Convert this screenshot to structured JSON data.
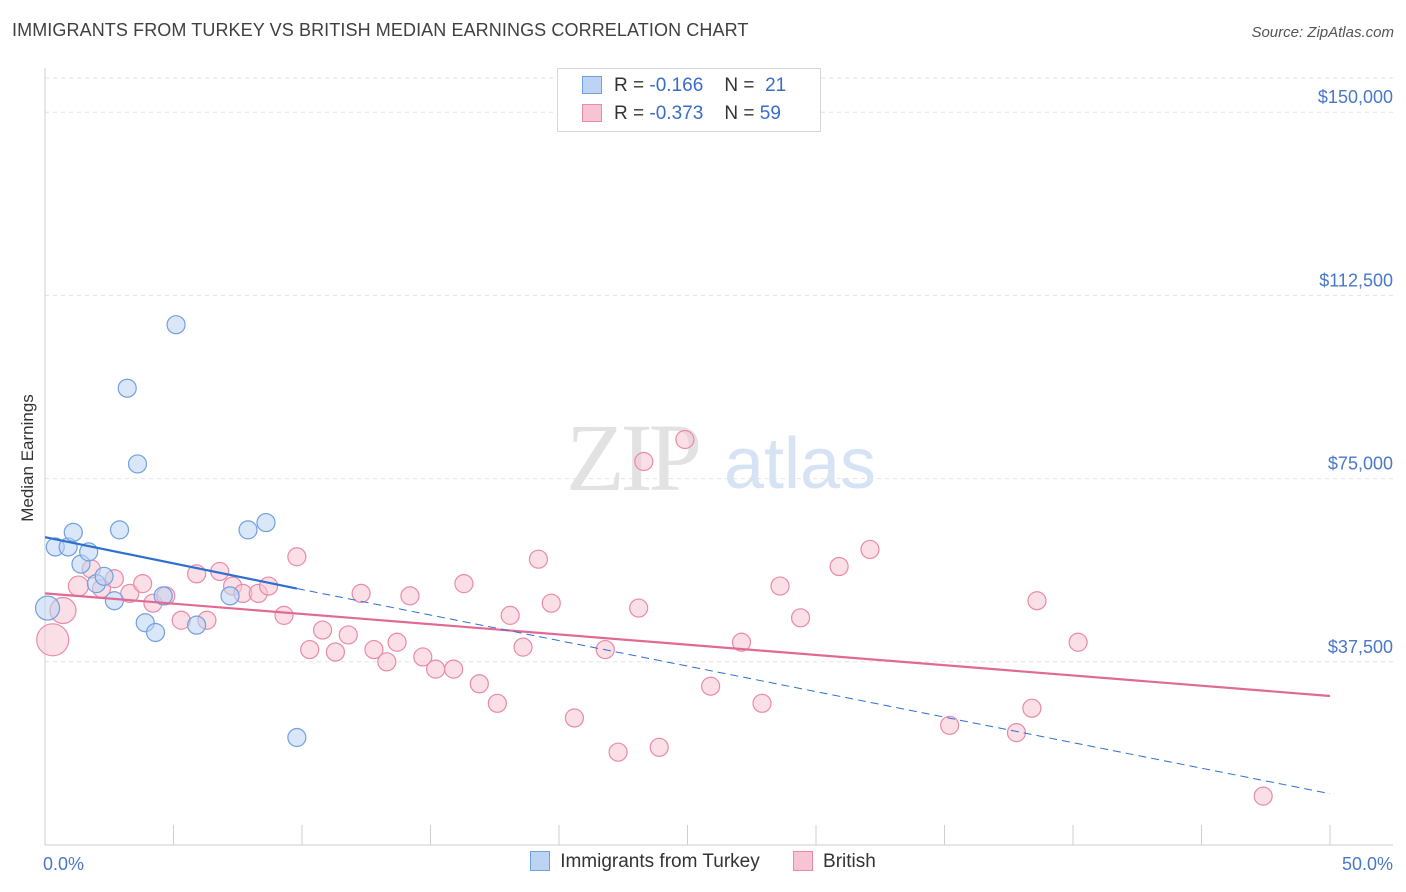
{
  "title": "IMMIGRANTS FROM TURKEY VS BRITISH MEDIAN EARNINGS CORRELATION CHART",
  "source": "Source: ZipAtlas.com",
  "watermark": {
    "zip": "ZIP",
    "atlas": "atlas"
  },
  "colors": {
    "turkey": "#6fa0e0",
    "turkey_fill": "#bcd3f3",
    "british": "#e88aa8",
    "british_fill": "#f7c4d4",
    "turkey_line": "#2f6fd0",
    "british_line": "#e06a94",
    "axis_label": "#4a78c7"
  },
  "legend": {
    "rows": [
      {
        "r_label": "R =",
        "r_value": "-0.166",
        "n_label": "N =",
        "n_value": "21"
      },
      {
        "r_label": "R =",
        "r_value": "-0.373",
        "n_label": "N =",
        "n_value": "59"
      }
    ]
  },
  "bottom_legend": {
    "turkey": "Immigrants from Turkey",
    "british": "British"
  },
  "chart_data": {
    "type": "scatter",
    "title": "IMMIGRANTS FROM TURKEY VS BRITISH MEDIAN EARNINGS CORRELATION CHART",
    "xlabel": "",
    "ylabel": "Median Earnings",
    "xlim": [
      0,
      50
    ],
    "ylim": [
      0,
      157000
    ],
    "x_tick_labels": [
      "0.0%",
      "50.0%"
    ],
    "y_ticks": [
      37500,
      75000,
      112500,
      150000
    ],
    "y_tick_labels": [
      "$37,500",
      "$75,000",
      "$112,500",
      "$150,000"
    ],
    "grid": true,
    "legend_position": "top-center",
    "series": [
      {
        "name": "Immigrants from Turkey",
        "r": -0.166,
        "n": 21,
        "points": [
          [
            0.1,
            48500,
            12
          ],
          [
            0.4,
            61000,
            9
          ],
          [
            0.9,
            61000,
            9
          ],
          [
            1.1,
            64000,
            9
          ],
          [
            1.4,
            57500,
            9
          ],
          [
            1.7,
            60000,
            9
          ],
          [
            2.0,
            53500,
            9
          ],
          [
            2.3,
            55000,
            9
          ],
          [
            2.7,
            50000,
            9
          ],
          [
            2.9,
            64500,
            9
          ],
          [
            3.2,
            93500,
            9
          ],
          [
            3.6,
            78000,
            9
          ],
          [
            3.9,
            45500,
            9
          ],
          [
            4.3,
            43500,
            9
          ],
          [
            4.6,
            51000,
            9
          ],
          [
            5.1,
            106500,
            9
          ],
          [
            5.9,
            45000,
            9
          ],
          [
            7.2,
            51000,
            9
          ],
          [
            7.9,
            64500,
            9
          ],
          [
            8.6,
            66000,
            9
          ],
          [
            9.8,
            22000,
            9
          ]
        ],
        "trend": {
          "x0": 0,
          "y0": 63000,
          "x1": 9.8,
          "y1": 52500,
          "dash_x1": 50,
          "dash_y1": 10500
        }
      },
      {
        "name": "British",
        "r": -0.373,
        "n": 59,
        "points": [
          [
            0.3,
            42000,
            16
          ],
          [
            0.7,
            48000,
            13
          ],
          [
            1.3,
            53000,
            10
          ],
          [
            1.8,
            56500,
            9
          ],
          [
            2.2,
            52500,
            9
          ],
          [
            2.7,
            54500,
            9
          ],
          [
            3.3,
            51500,
            9
          ],
          [
            3.8,
            53500,
            9
          ],
          [
            4.2,
            49500,
            9
          ],
          [
            4.7,
            51000,
            9
          ],
          [
            5.3,
            46000,
            9
          ],
          [
            5.9,
            55500,
            9
          ],
          [
            6.3,
            46000,
            9
          ],
          [
            6.8,
            56000,
            9
          ],
          [
            7.3,
            53000,
            9
          ],
          [
            7.7,
            51500,
            9
          ],
          [
            8.3,
            51500,
            9
          ],
          [
            8.7,
            53000,
            9
          ],
          [
            9.3,
            47000,
            9
          ],
          [
            9.8,
            59000,
            9
          ],
          [
            10.3,
            40000,
            9
          ],
          [
            10.8,
            44000,
            9
          ],
          [
            11.3,
            39500,
            9
          ],
          [
            11.8,
            43000,
            9
          ],
          [
            12.3,
            51500,
            9
          ],
          [
            12.8,
            40000,
            9
          ],
          [
            13.3,
            37500,
            9
          ],
          [
            13.7,
            41500,
            9
          ],
          [
            14.2,
            51000,
            9
          ],
          [
            14.7,
            38500,
            9
          ],
          [
            15.2,
            36000,
            9
          ],
          [
            15.9,
            36000,
            9
          ],
          [
            16.3,
            53500,
            9
          ],
          [
            16.9,
            33000,
            9
          ],
          [
            17.6,
            29000,
            9
          ],
          [
            18.1,
            47000,
            9
          ],
          [
            18.6,
            40500,
            9
          ],
          [
            19.2,
            58500,
            9
          ],
          [
            19.7,
            49500,
            9
          ],
          [
            20.6,
            26000,
            9
          ],
          [
            21.8,
            40000,
            9
          ],
          [
            22.3,
            19000,
            9
          ],
          [
            23.1,
            48500,
            9
          ],
          [
            23.3,
            78500,
            9
          ],
          [
            23.9,
            20000,
            9
          ],
          [
            24.9,
            83000,
            9
          ],
          [
            25.9,
            32500,
            9
          ],
          [
            27.1,
            41500,
            9
          ],
          [
            27.9,
            29000,
            9
          ],
          [
            28.6,
            53000,
            9
          ],
          [
            29.4,
            46500,
            9
          ],
          [
            30.9,
            57000,
            9
          ],
          [
            32.1,
            60500,
            9
          ],
          [
            35.2,
            24500,
            9
          ],
          [
            37.8,
            23000,
            9
          ],
          [
            38.4,
            28000,
            9
          ],
          [
            38.6,
            50000,
            9
          ],
          [
            40.2,
            41500,
            9
          ],
          [
            47.4,
            10000,
            9
          ]
        ],
        "trend": {
          "x0": 0,
          "y0": 51500,
          "x1": 50,
          "y1": 30500
        }
      }
    ]
  }
}
